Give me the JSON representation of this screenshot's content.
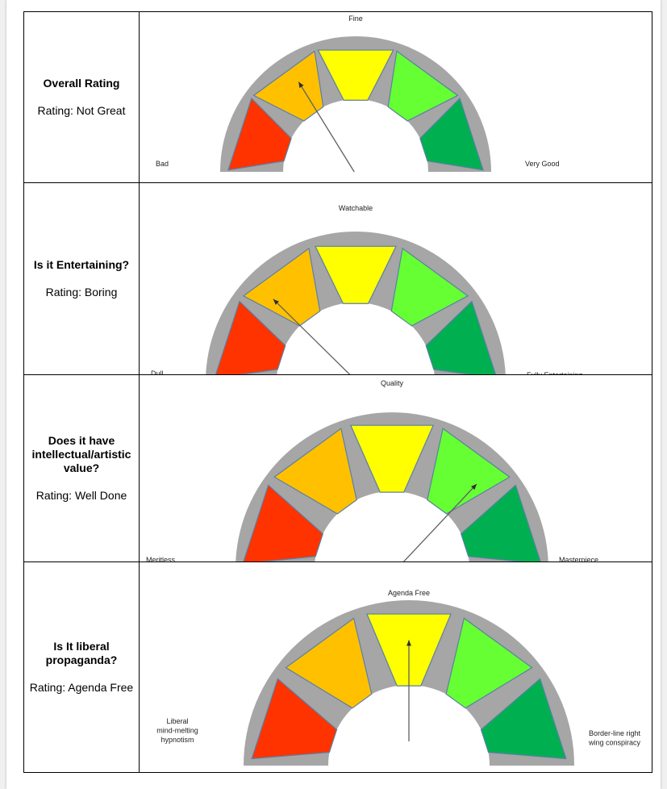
{
  "colors": {
    "red": "#ff3300",
    "orange": "#ffc000",
    "yellow": "#ffff00",
    "light_green": "#66ff33",
    "green": "#00b050",
    "track": "#a6a6a6",
    "pointer": "#606060"
  },
  "rows": [
    {
      "question": "Overall Rating",
      "rating": "Rating: Not Great",
      "top_label": "Fine",
      "left_label": "Bad",
      "right_label": "Very Good",
      "needle_value": 0.32
    },
    {
      "question": "Is it Entertaining?",
      "rating": "Rating: Boring",
      "top_label": "Watchable",
      "left_label": "Dull",
      "right_label": "Fully Entertaining",
      "needle_value": 0.25
    },
    {
      "question": "Does it have intellectual/artistic value?",
      "rating": "Rating: Well Done",
      "top_label": "Quality",
      "left_label": "Meritless",
      "right_label": "Masterpiece",
      "needle_value": 0.75
    },
    {
      "question": "Is It liberal propaganda?",
      "rating": "Rating: Agenda Free",
      "top_label": "Agenda Free",
      "left_label": [
        "Liberal",
        "mind-melting",
        "hypnotism"
      ],
      "right_label": [
        "Border-line right",
        "wing conspiracy"
      ],
      "needle_value": 0.5
    }
  ]
}
